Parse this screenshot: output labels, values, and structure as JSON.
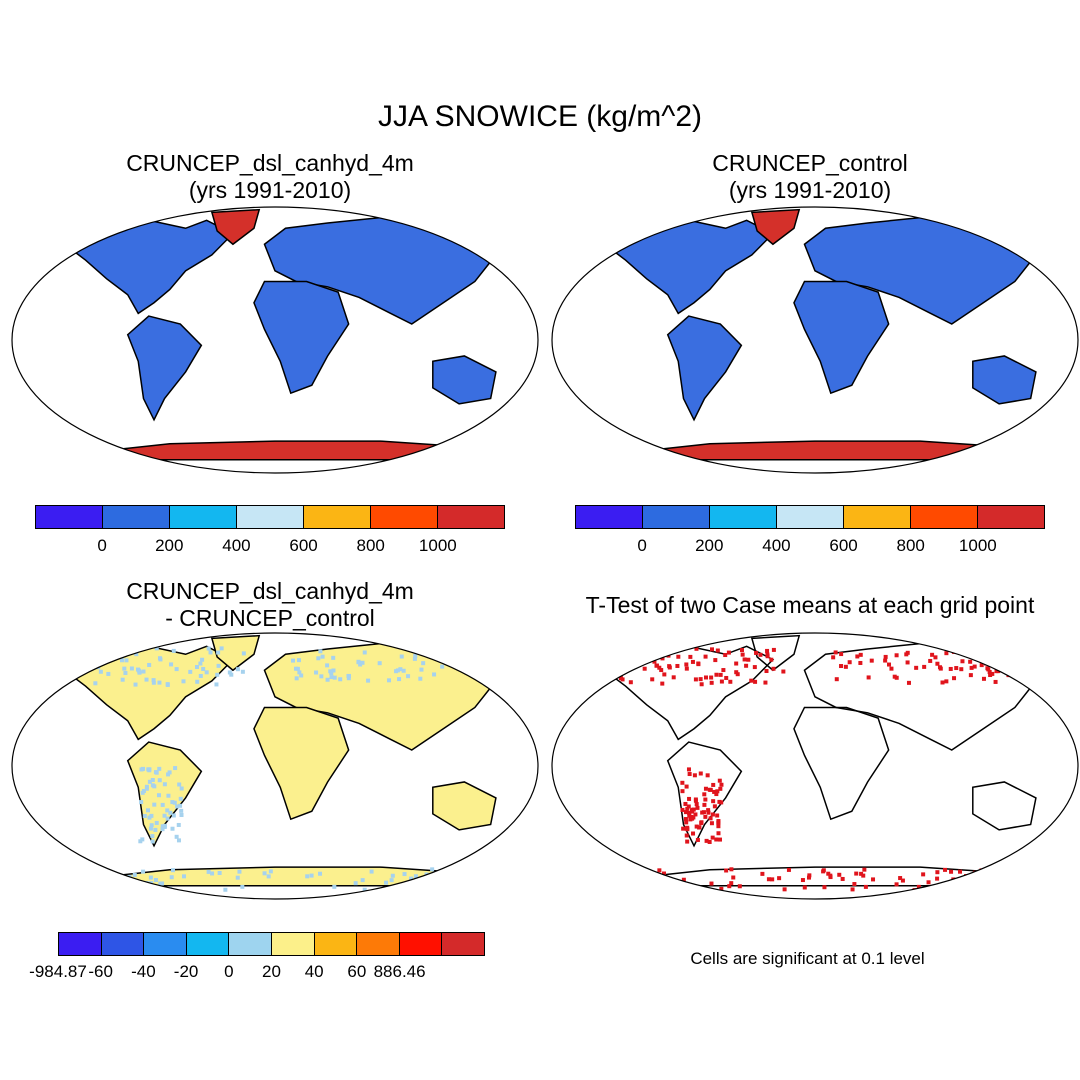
{
  "title": "JJA SNOWICE (kg/m^2)",
  "panels": [
    {
      "title_line1": "CRUNCEP_dsl_canhyd_4m",
      "title_line2": "(yrs 1991-2010)"
    },
    {
      "title_line1": "CRUNCEP_control",
      "title_line2": "(yrs 1991-2010)"
    },
    {
      "title_line1": "CRUNCEP_dsl_canhyd_4m",
      "title_line2": "- CRUNCEP_control"
    },
    {
      "title_line1": "T-Test of two Case means at each grid point",
      "title_line2": ""
    }
  ],
  "colorbar_abs": {
    "colors": [
      "#3b1df2",
      "#2d6be0",
      "#13b7f0",
      "#c6e6f5",
      "#fbb514",
      "#ff4a00",
      "#d42a2a"
    ],
    "labels": [
      "0",
      "200",
      "400",
      "600",
      "800",
      "1000"
    ]
  },
  "colorbar_diff": {
    "colors": [
      "#3b1df2",
      "#2e55e6",
      "#2a8cf0",
      "#13b7f0",
      "#9ed4ef",
      "#fcf08a",
      "#fbb514",
      "#fd7a07",
      "#ff1000",
      "#d42a2a"
    ],
    "labels": [
      "-984.87",
      "-60",
      "-40",
      "-20",
      "0",
      "20",
      "40",
      "60",
      "886.46"
    ]
  },
  "significance_note": "Cells are significant at 0.1 level",
  "colors": {
    "land_abs": "#3a6ee0",
    "ice_abs": "#d4302a",
    "land_diff": "#fbf08e",
    "diff_negative": "#a6d2ee",
    "significant": "#e0141c",
    "ocean": "#ffffff"
  }
}
